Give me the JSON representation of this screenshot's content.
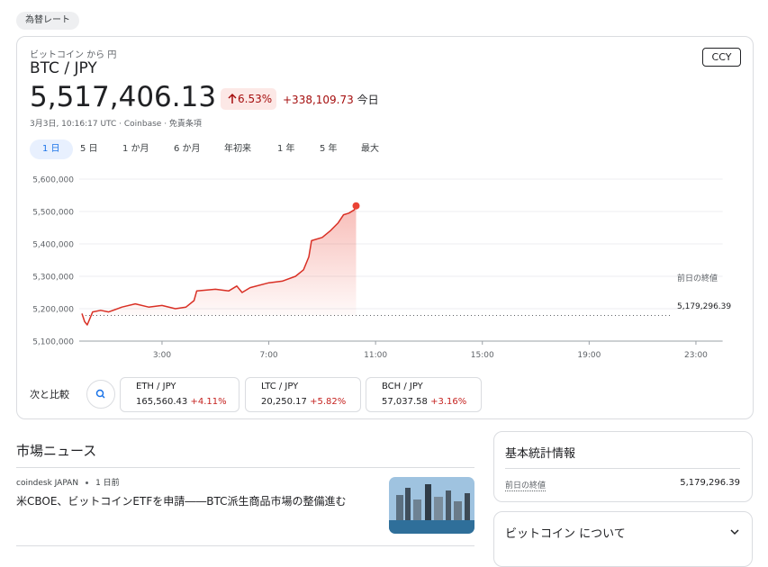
{
  "header": {
    "chip": "為替レート",
    "subtitle": "ビットコイン から 円",
    "pair": "BTC / JPY",
    "currency_button": "CCY",
    "price": "5,517,406.13",
    "change_percent": "6.53%",
    "change": "+338,109.73",
    "change_period": "今日",
    "timestamp": "3月3日, 10:16:17 UTC · Coinbase · 免責条項"
  },
  "ranges": {
    "items": [
      "1 日",
      "5 日",
      "1 か月",
      "6 か月",
      "年初来",
      "1 年",
      "5 年",
      "最大"
    ],
    "selected": 0
  },
  "chart_data": {
    "type": "line",
    "color": "#d93025",
    "grid": true,
    "x": [
      0.0,
      0.1,
      0.2,
      0.4,
      0.7,
      1.0,
      1.5,
      2.0,
      2.5,
      3.0,
      3.5,
      3.9,
      4.2,
      4.3,
      5.0,
      5.5,
      5.8,
      6.0,
      6.3,
      7.0,
      7.5,
      8.0,
      8.3,
      8.5,
      8.6,
      9.0,
      9.3,
      9.6,
      9.8,
      10.0,
      10.2,
      10.27
    ],
    "values": [
      5185000,
      5160000,
      5150000,
      5190000,
      5195000,
      5190000,
      5205000,
      5215000,
      5205000,
      5210000,
      5200000,
      5205000,
      5225000,
      5255000,
      5260000,
      5255000,
      5270000,
      5250000,
      5265000,
      5280000,
      5285000,
      5300000,
      5320000,
      5360000,
      5410000,
      5420000,
      5440000,
      5465000,
      5490000,
      5495000,
      5505000,
      5517406.13
    ],
    "xlim": [
      0,
      24
    ],
    "xticks": [
      {
        "value": 3,
        "label": "3:00"
      },
      {
        "value": 7,
        "label": "7:00"
      },
      {
        "value": 11,
        "label": "11:00"
      },
      {
        "value": 15,
        "label": "15:00"
      },
      {
        "value": 19,
        "label": "19:00"
      },
      {
        "value": 23,
        "label": "23:00"
      }
    ],
    "ylim": [
      5100000,
      5600000
    ],
    "yticks": [
      {
        "value": 5100000,
        "label": "5,100,000"
      },
      {
        "value": 5200000,
        "label": "5,200,000"
      },
      {
        "value": 5300000,
        "label": "5,300,000"
      },
      {
        "value": 5400000,
        "label": "5,400,000"
      },
      {
        "value": 5500000,
        "label": "5,500,000"
      },
      {
        "value": 5600000,
        "label": "5,600,000"
      }
    ],
    "reference_line": {
      "label": "前日の終値",
      "value": 5179296.39,
      "value_label": "5,179,296.39"
    }
  },
  "compare": {
    "label": "次と比較",
    "items": [
      {
        "pair": "ETH / JPY",
        "price": "165,560.43",
        "change": "+4.11%"
      },
      {
        "pair": "LTC / JPY",
        "price": "20,250.17",
        "change": "+5.82%"
      },
      {
        "pair": "BCH / JPY",
        "price": "57,037.58",
        "change": "+3.16%"
      }
    ]
  },
  "news": {
    "title": "市場ニュース",
    "items": [
      {
        "source": "coindesk JAPAN",
        "age": "1 日前",
        "headline": "米CBOE、ビットコインETFを申請――BTC派生商品市場の整備進む"
      }
    ]
  },
  "stats": {
    "title": "基本統計情報",
    "rows": [
      {
        "label": "前日の終値",
        "value": "5,179,296.39"
      }
    ]
  },
  "about": {
    "title": "ビットコイン について"
  }
}
